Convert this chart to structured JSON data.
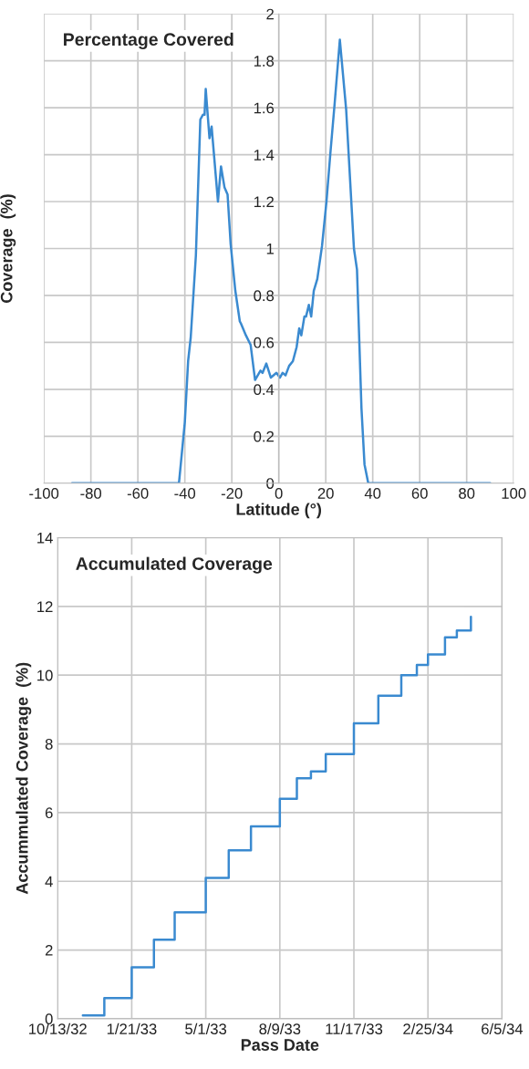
{
  "chart_data": [
    {
      "type": "line",
      "title": "Percentage Covered",
      "xlabel": "Latitude (°)",
      "ylabel": "Coverage  (%)",
      "xlim": [
        -100,
        100
      ],
      "xticks": [
        -100,
        -80,
        -60,
        -40,
        -20,
        0,
        20,
        40,
        60,
        80,
        100
      ],
      "ylim": [
        0,
        2
      ],
      "yticks": [
        0,
        0.2,
        0.4,
        0.6,
        0.8,
        1,
        1.2,
        1.4,
        1.6,
        1.8,
        2
      ],
      "grid": true,
      "series": [
        {
          "color": "#3a8ad0",
          "x": [
            -88,
            -60,
            -42.5,
            -40,
            -38.6,
            -37.5,
            -35.3,
            -33.4,
            -32.3,
            -31.6,
            -31.1,
            -29.5,
            -28.6,
            -25.9,
            -24.6,
            -23.1,
            -21.8,
            -20.5,
            -18.5,
            -16.6,
            -16.1,
            -14.0,
            -12.0,
            -10.1,
            -7.8,
            -6.9,
            -5.3,
            -3.4,
            -1.0,
            0.5,
            1.6,
            2.9,
            4.4,
            6.0,
            7.6,
            8.7,
            9.6,
            10.9,
            11.6,
            12.8,
            13.8,
            14.9,
            16.4,
            18.4,
            20.3,
            22.0,
            23.8,
            26.0,
            28.7,
            32.0,
            33.3,
            35.2,
            36.5,
            38.1,
            60,
            90
          ],
          "values": [
            0,
            0,
            0,
            0.26,
            0.52,
            0.62,
            0.97,
            1.55,
            1.57,
            1.57,
            1.68,
            1.47,
            1.52,
            1.2,
            1.35,
            1.26,
            1.23,
            1.02,
            0.82,
            0.69,
            0.68,
            0.63,
            0.59,
            0.44,
            0.48,
            0.47,
            0.51,
            0.45,
            0.47,
            0.45,
            0.47,
            0.46,
            0.5,
            0.52,
            0.58,
            0.66,
            0.63,
            0.71,
            0.71,
            0.76,
            0.71,
            0.82,
            0.87,
            1.01,
            1.2,
            1.41,
            1.62,
            1.89,
            1.59,
            1.0,
            0.91,
            0.32,
            0.08,
            0,
            0,
            0
          ]
        }
      ]
    },
    {
      "type": "step",
      "title": "Accumulated Coverage",
      "xlabel": "Pass Date",
      "ylabel": "Accummulated Coverage  (%)",
      "xlim": [
        "2032-10-13",
        "2034-06-05"
      ],
      "xticks": [
        {
          "value": "2032-10-13",
          "label": "10/13/32"
        },
        {
          "value": "2033-01-21",
          "label": "1/21/33"
        },
        {
          "value": "2033-05-01",
          "label": "5/1/33"
        },
        {
          "value": "2033-08-09",
          "label": "8/9/33"
        },
        {
          "value": "2033-11-17",
          "label": "11/17/33"
        },
        {
          "value": "2034-02-25",
          "label": "2/25/34"
        },
        {
          "value": "2034-06-05",
          "label": "6/5/34"
        }
      ],
      "ylim": [
        0,
        14
      ],
      "yticks": [
        0,
        2,
        4,
        6,
        8,
        10,
        12,
        14
      ],
      "grid": true,
      "series": [
        {
          "color": "#3a8ad0",
          "x": [
            "2032-11-16",
            "2032-12-15",
            "2033-01-21",
            "2033-02-20",
            "2033-03-20",
            "2033-05-01",
            "2033-06-01",
            "2033-07-01",
            "2033-08-09",
            "2033-09-01",
            "2033-09-20",
            "2033-10-10",
            "2033-11-17",
            "2033-12-20",
            "2034-01-20",
            "2034-02-10",
            "2034-02-25",
            "2034-03-20",
            "2034-04-05",
            "2034-04-24"
          ],
          "values": [
            0.1,
            0.6,
            1.5,
            2.3,
            3.1,
            4.1,
            4.9,
            5.6,
            6.4,
            7.0,
            7.2,
            7.7,
            8.6,
            9.4,
            10.0,
            10.3,
            10.6,
            11.1,
            11.3,
            11.7
          ]
        }
      ]
    }
  ]
}
